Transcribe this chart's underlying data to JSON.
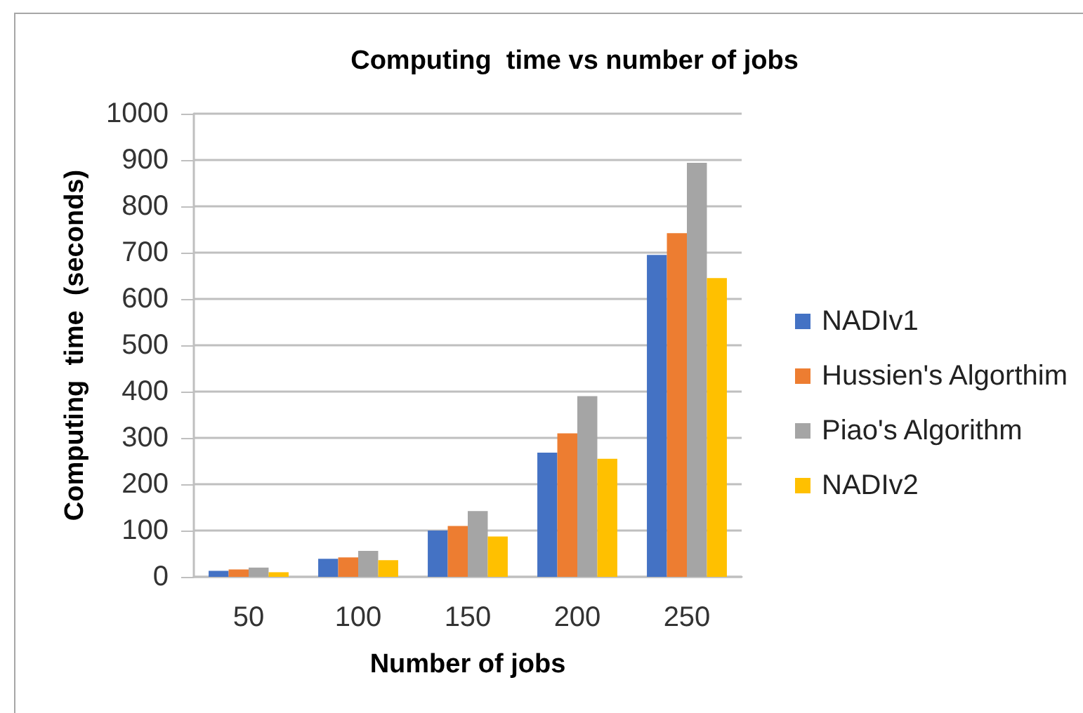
{
  "chart_data": {
    "type": "bar",
    "title": "Computing  time vs number of jobs",
    "xlabel": "Number of jobs",
    "ylabel": "Computing  time  (seconds)",
    "categories": [
      "50",
      "100",
      "150",
      "200",
      "250"
    ],
    "series": [
      {
        "name": "NADIv1",
        "color": "#4472c4",
        "values": [
          13,
          39,
          100,
          268,
          695
        ]
      },
      {
        "name": "Hussien's Algorthim",
        "color": "#ed7d31",
        "values": [
          16,
          42,
          110,
          310,
          742
        ]
      },
      {
        "name": "Piao's Algorithm",
        "color": "#a5a5a5",
        "values": [
          20,
          56,
          142,
          390,
          894
        ]
      },
      {
        "name": "NADIv2",
        "color": "#ffc000",
        "values": [
          10,
          36,
          87,
          255,
          645
        ]
      }
    ],
    "ylim": [
      0,
      1000
    ],
    "yticks": [
      0,
      100,
      200,
      300,
      400,
      500,
      600,
      700,
      800,
      900,
      1000
    ],
    "grid": "y",
    "legend": "right"
  }
}
